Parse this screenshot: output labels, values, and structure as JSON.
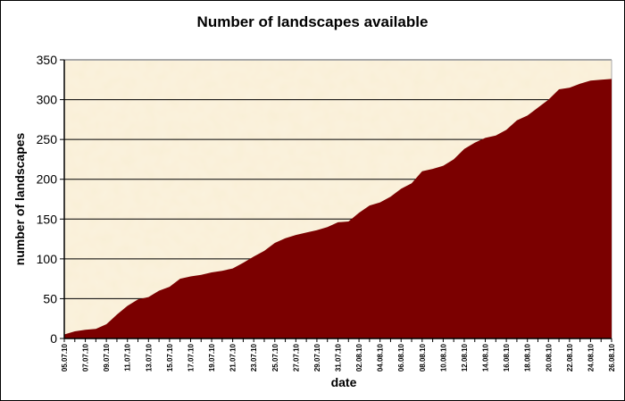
{
  "chart_data": {
    "type": "area",
    "title": "Number of landscapes available",
    "xlabel": "date",
    "ylabel": "number of landscapes",
    "ylim": [
      0,
      350
    ],
    "yticks": [
      0,
      50,
      100,
      150,
      200,
      250,
      300,
      350
    ],
    "grid": true,
    "legend": "none",
    "fill_color": "#7b0000",
    "plot_background": "#f9efd6",
    "xtick_labels": [
      "05.07.10",
      "07.07.10",
      "09.07.10",
      "11.07.10",
      "13.07.10",
      "15.07.10",
      "17.07.10",
      "19.07.10",
      "21.07.10",
      "23.07.10",
      "25.07.10",
      "27.07.10",
      "29.07.10",
      "31.07.10",
      "02.08.10",
      "04.08.10",
      "06.08.10",
      "08.08.10",
      "10.08.10",
      "12.08.10",
      "14.08.10",
      "16.08.10",
      "18.08.10",
      "20.08.10",
      "22.08.10",
      "24.08.10",
      "26.08.10"
    ],
    "x": [
      "05.07.10",
      "06.07.10",
      "07.07.10",
      "08.07.10",
      "09.07.10",
      "10.07.10",
      "11.07.10",
      "12.07.10",
      "13.07.10",
      "14.07.10",
      "15.07.10",
      "16.07.10",
      "17.07.10",
      "18.07.10",
      "19.07.10",
      "20.07.10",
      "21.07.10",
      "22.07.10",
      "23.07.10",
      "24.07.10",
      "25.07.10",
      "26.07.10",
      "27.07.10",
      "28.07.10",
      "29.07.10",
      "30.07.10",
      "31.07.10",
      "01.08.10",
      "02.08.10",
      "03.08.10",
      "04.08.10",
      "05.08.10",
      "06.08.10",
      "07.08.10",
      "08.08.10",
      "09.08.10",
      "10.08.10",
      "11.08.10",
      "12.08.10",
      "13.08.10",
      "14.08.10",
      "15.08.10",
      "16.08.10",
      "17.08.10",
      "18.08.10",
      "19.08.10",
      "20.08.10",
      "21.08.10",
      "22.08.10",
      "23.08.10",
      "24.08.10",
      "25.08.10",
      "26.08.10"
    ],
    "values": [
      5,
      9,
      11,
      12,
      18,
      30,
      41,
      49,
      52,
      60,
      65,
      75,
      78,
      80,
      83,
      85,
      88,
      95,
      103,
      110,
      120,
      126,
      130,
      133,
      136,
      140,
      146,
      147,
      158,
      167,
      171,
      178,
      188,
      195,
      210,
      213,
      217,
      225,
      238,
      246,
      252,
      255,
      262,
      274,
      280,
      290,
      300,
      313,
      315,
      320,
      324,
      325,
      326
    ]
  }
}
